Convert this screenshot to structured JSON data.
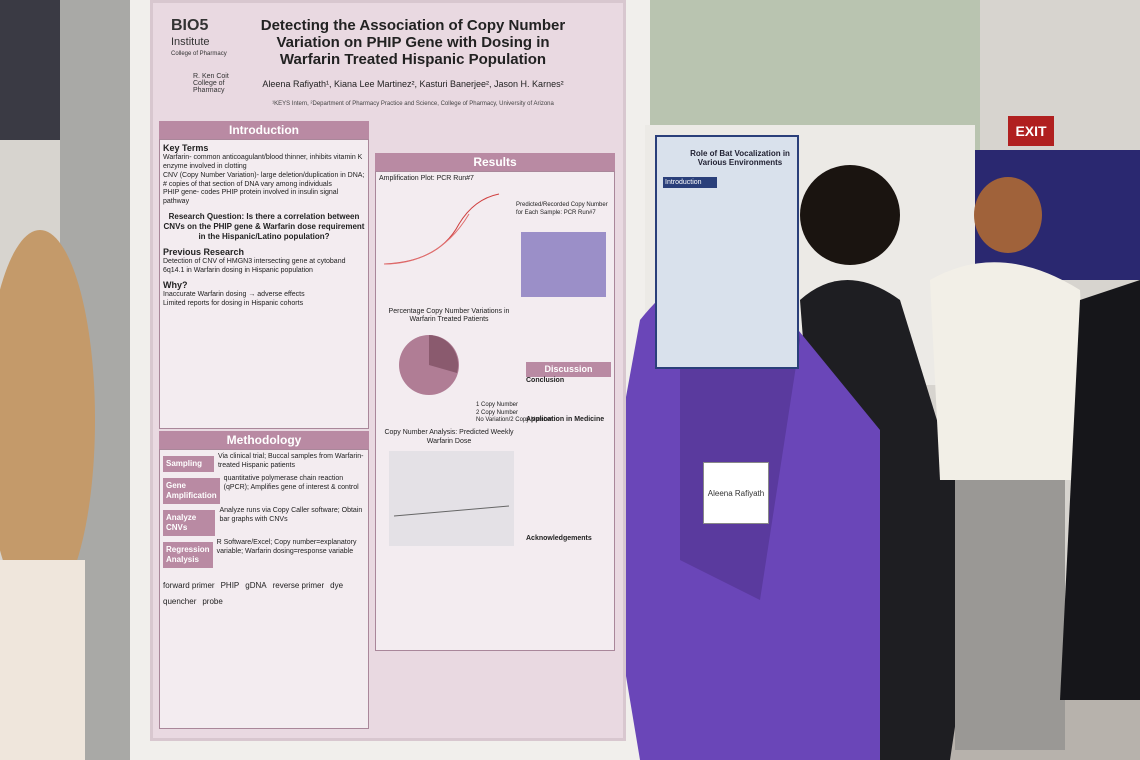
{
  "poster": {
    "logo": {
      "name": "BIO5",
      "sub": "Institute",
      "college": "College of Pharmacy"
    },
    "college": "R. Ken Coit College of Pharmacy",
    "title": "Detecting the Association of Copy Number Variation on PHIP Gene with Dosing in Warfarin Treated Hispanic Population",
    "authors": "Aleena Rafiyath¹, Kiana Lee Martinez², Kasturi Banerjee², Jason H. Karnes²",
    "affiliation": "¹KEYS Intern, ²Department of Pharmacy Practice and Science, College of Pharmacy, University of Arizona",
    "introduction": {
      "header": "Introduction",
      "key_terms": "Key Terms",
      "terms": [
        "Warfarin- common anticoagulant/blood thinner, inhibits vitamin K enzyme involved in clotting",
        "CNV (Copy Number Variation)- large deletion/duplication in DNA; # copies of that section of DNA vary among individuals",
        "PHIP gene- codes PHIP protein involved in insulin signal pathway"
      ],
      "question": "Research Question: Is there a correlation between CNVs on the PHIP gene & Warfarin dose requirement in the Hispanic/Latino population?",
      "previous": "Previous Research",
      "previous_text": "Detection of CNV of HMGN3 intersecting gene at cytoband 6q14.1 in Warfarin dosing in Hispanic population",
      "why": "Why?",
      "why_items": [
        "Inaccurate Warfarin dosing → adverse effects",
        "Limited reports for dosing in Hispanic cohorts"
      ]
    },
    "results": {
      "header": "Results",
      "plot1": "Amplification Plot: PCR Run#7",
      "plot2": "Predicted/Recorded Copy Number for Each Sample: PCR Run#7",
      "plot3": "Percentage Copy Number Variations in Warfarin Treated Patients",
      "legend": [
        "1 Copy Number",
        "2 Copy Number",
        "No Variation/2 Copy Number"
      ],
      "plot4": "Copy Number Analysis: Predicted Weekly Warfarin Dose"
    },
    "methodology": {
      "header": "Methodology",
      "steps": [
        {
          "label": "Sampling",
          "text": "Via clinical trial; Buccal samples from Warfarin-treated Hispanic patients"
        },
        {
          "label": "Gene Amplification",
          "text": "quantitative polymerase chain reaction (qPCR); Amplifies gene of interest & control"
        },
        {
          "label": "Analyze CNVs",
          "text": "Analyze runs via Copy Caller software; Obtain bar graphs with CNVs"
        },
        {
          "label": "Regression Analysis",
          "text": "R Software/Excel; Copy number=explanatory variable; Warfarin dosing=response variable"
        }
      ],
      "labels": [
        "forward primer",
        "PHIP",
        "gDNA",
        "reverse primer",
        "dye",
        "quencher",
        "probe"
      ]
    },
    "discussion": {
      "header": "Discussion",
      "conclusion": "Conclusion",
      "application": "Application in Medicine",
      "ack": "Acknowledgements"
    }
  },
  "badge": {
    "name": "Aleena Rafiyath"
  },
  "sign": "EXIT",
  "second_poster": {
    "title": "Role of Bat Vocalization in Various Environments",
    "intro": "Introduction"
  }
}
